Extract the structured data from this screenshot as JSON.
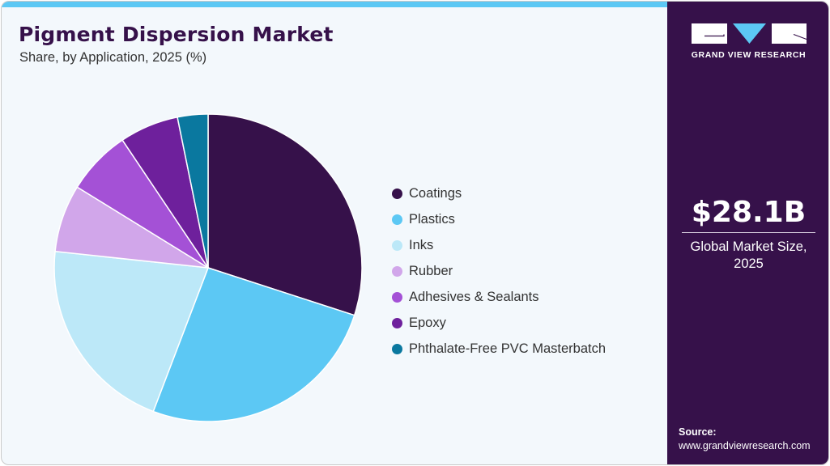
{
  "header": {
    "title": "Pigment Dispersion Market",
    "subtitle": "Share, by Application, 2025 (%)"
  },
  "colors": {
    "accent_bar": "#5cc8f4",
    "sidebar_bg": "#36114a",
    "card_bg": "#f3f8fc"
  },
  "legend": {
    "items": [
      {
        "label": "Coatings",
        "color": "#36114a"
      },
      {
        "label": "Plastics",
        "color": "#5cc8f4"
      },
      {
        "label": "Inks",
        "color": "#bce8f8"
      },
      {
        "label": "Rubber",
        "color": "#d1a6ea"
      },
      {
        "label": "Adhesives & Sealants",
        "color": "#a451d6"
      },
      {
        "label": "Epoxy",
        "color": "#6e209c"
      },
      {
        "label": "Phthalate-Free PVC Masterbatch",
        "color": "#0a789f"
      }
    ]
  },
  "sidebar": {
    "logo_text": "GRAND VIEW RESEARCH",
    "market_value": "$28.1B",
    "market_label_line1": "Global Market Size,",
    "market_label_line2": "2025",
    "source_label": "Source:",
    "source_url": "www.grandviewresearch.com"
  },
  "chart_data": {
    "type": "pie",
    "title": "Pigment Dispersion Market",
    "subtitle": "Share, by Application, 2025 (%)",
    "categories": [
      "Coatings",
      "Plastics",
      "Inks",
      "Rubber",
      "Adhesives & Sealants",
      "Epoxy",
      "Phthalate-Free PVC Masterbatch"
    ],
    "values": [
      30.0,
      25.8,
      20.9,
      7.1,
      6.8,
      6.2,
      3.2
    ],
    "colors": [
      "#36114a",
      "#5cc8f4",
      "#bce8f8",
      "#d1a6ea",
      "#a451d6",
      "#6e209c",
      "#0a789f"
    ],
    "start_angle": "12 o'clock, clockwise",
    "legend_position": "right",
    "center": [
      255,
      329
    ],
    "radius": 190
  }
}
